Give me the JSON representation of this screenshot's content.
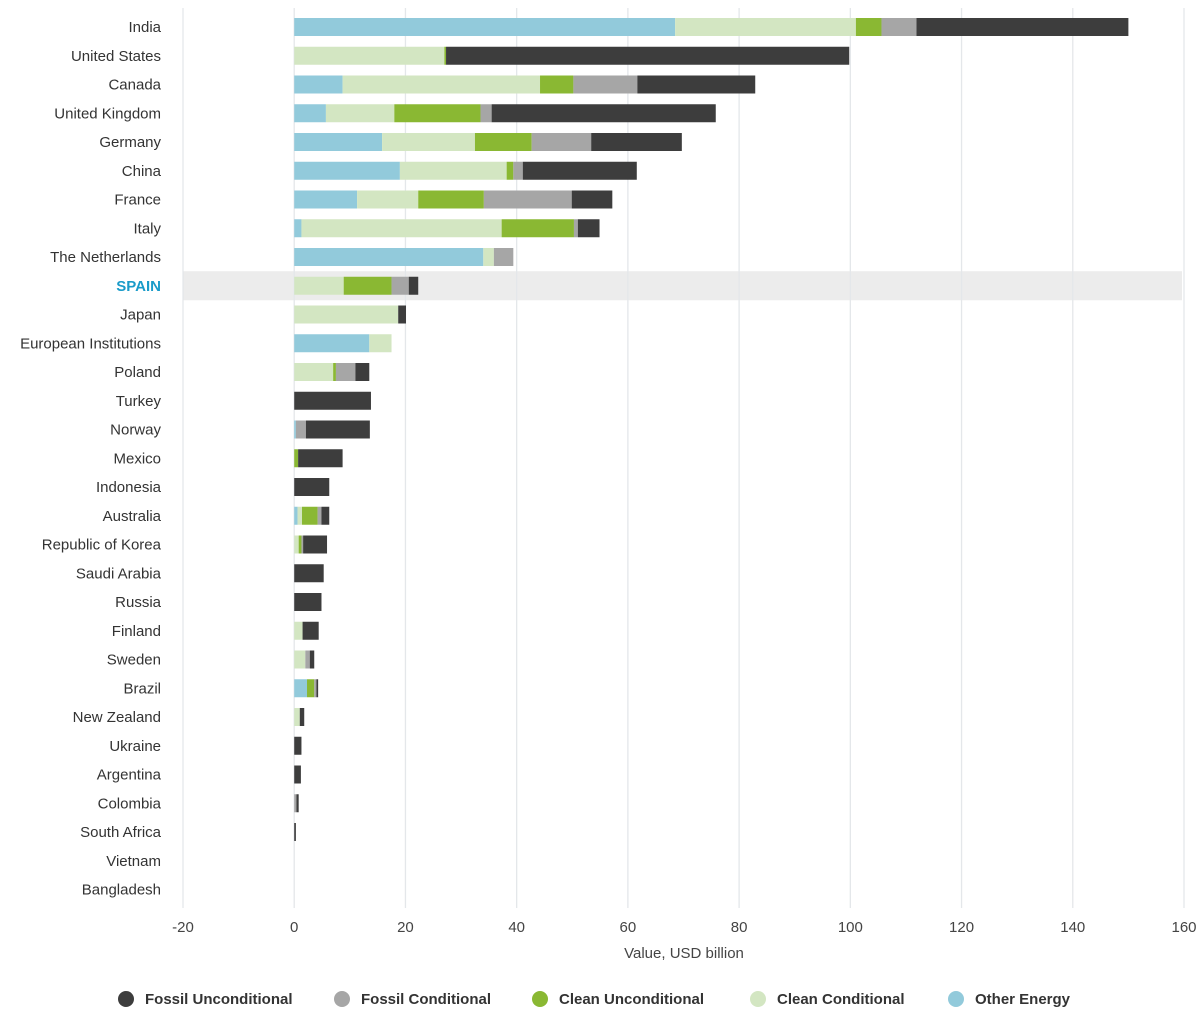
{
  "chart_data": {
    "type": "bar",
    "orientation": "horizontal",
    "stacked": true,
    "xlabel": "Value, USD billion",
    "xlim": [
      -20,
      160
    ],
    "xticks": [
      -20,
      0,
      20,
      40,
      60,
      80,
      100,
      120,
      140,
      160
    ],
    "grid": true,
    "legend_position": "bottom",
    "highlight_category": "SPAIN",
    "categories": [
      "India",
      "United States",
      "Canada",
      "United Kingdom",
      "Germany",
      "China",
      "France",
      "Italy",
      "The Netherlands",
      "SPAIN",
      "Japan",
      "European Institutions",
      "Poland",
      "Turkey",
      "Norway",
      "Mexico",
      "Indonesia",
      "Australia",
      "Republic of Korea",
      "Saudi Arabia",
      "Russia",
      "Finland",
      "Sweden",
      "Brazil",
      "New Zealand",
      "Ukraine",
      "Argentina",
      "Colombia",
      "South Africa",
      "Vietnam",
      "Bangladesh"
    ],
    "series": [
      {
        "name": "Other Energy",
        "color": "#92cadb",
        "values": [
          68.5,
          0,
          8.7,
          5.7,
          15.8,
          19,
          11.3,
          1.3,
          34,
          0,
          0,
          13.5,
          0,
          0,
          0.3,
          0,
          0,
          0.6,
          0,
          0,
          0,
          0,
          0,
          2.3,
          0,
          0,
          0,
          0,
          0,
          0,
          0
        ]
      },
      {
        "name": "Clean Conditional",
        "color": "#d3e6c2",
        "values": [
          32.5,
          27,
          35.5,
          12.3,
          16.7,
          19.2,
          11,
          36,
          1.9,
          8.9,
          18.7,
          4,
          7,
          0,
          0,
          0,
          0,
          0.8,
          0.8,
          0,
          0,
          1.5,
          2,
          0,
          1,
          0,
          0,
          0,
          0,
          0,
          0
        ]
      },
      {
        "name": "Clean Unconditional",
        "color": "#8ab833",
        "values": [
          4.6,
          0.3,
          6,
          15.5,
          10.2,
          1.2,
          11.8,
          13,
          0,
          8.6,
          0,
          0,
          0.5,
          0,
          0,
          0.7,
          0,
          2.8,
          0.5,
          0,
          0,
          0,
          0,
          1.3,
          0,
          0,
          0,
          0,
          0,
          0,
          0
        ]
      },
      {
        "name": "Fossil Conditional",
        "color": "#a6a6a6",
        "values": [
          6.3,
          0,
          11.5,
          2,
          10.7,
          1.7,
          15.8,
          0.7,
          3.5,
          3.1,
          0,
          0,
          3.5,
          0,
          1.8,
          0,
          0,
          0.7,
          0.3,
          0,
          0,
          0,
          0.8,
          0.4,
          0,
          0,
          0,
          0.4,
          0,
          0,
          0
        ]
      },
      {
        "name": "Fossil Unconditional",
        "color": "#3d3d3d",
        "values": [
          38.1,
          72.5,
          21.2,
          40.3,
          16.3,
          20.5,
          7.3,
          3.9,
          0,
          1.7,
          1.4,
          0,
          2.5,
          13.8,
          11.5,
          8,
          6.3,
          1.4,
          4.3,
          5.3,
          4.9,
          2.9,
          0.8,
          0.3,
          0.8,
          1.3,
          1.2,
          0.4,
          0.3,
          0,
          0
        ]
      }
    ]
  },
  "legend": [
    {
      "label": "Fossil Unconditional",
      "color": "#3d3d3d"
    },
    {
      "label": "Fossil Conditional",
      "color": "#a6a6a6"
    },
    {
      "label": "Clean Unconditional",
      "color": "#8ab833"
    },
    {
      "label": "Clean Conditional",
      "color": "#d3e6c2"
    },
    {
      "label": "Other Energy",
      "color": "#92cadb"
    }
  ]
}
